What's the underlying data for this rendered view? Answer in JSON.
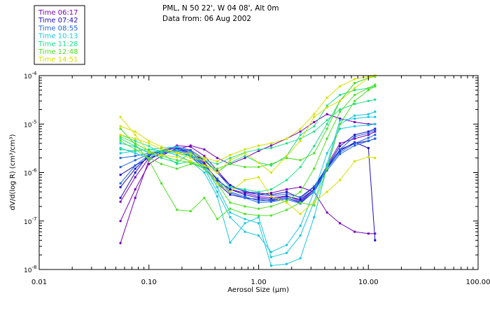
{
  "chart_data": {
    "type": "line",
    "title_line1": "PML, N 50 22', W 04 08', Alt 0m",
    "title_line2": "Data from: 06 Aug 2002",
    "xlabel": "Aerosol Size (μm)",
    "ylabel": "dV/d(log R) (cm³/cm³)",
    "xscale": "log",
    "yscale": "log",
    "xlim": [
      0.01,
      100.0
    ],
    "ylim": [
      1e-08,
      0.0001
    ],
    "x_tick_labels": [
      {
        "value": 0.01,
        "label": "0.01"
      },
      {
        "value": 0.1,
        "label": "0.10"
      },
      {
        "value": 1.0,
        "label": "1.00"
      },
      {
        "value": 10.0,
        "label": "10.00"
      },
      {
        "value": 100.0,
        "label": "100.00"
      }
    ],
    "y_tick_labels": [
      {
        "value": 1e-08,
        "mantissa": "10",
        "exp": "-8"
      },
      {
        "value": 1e-07,
        "mantissa": "10",
        "exp": "-7"
      },
      {
        "value": 1e-06,
        "mantissa": "10",
        "exp": "-6"
      },
      {
        "value": 1e-05,
        "mantissa": "10",
        "exp": "-5"
      },
      {
        "value": 0.0001,
        "mantissa": "10",
        "exp": "-4"
      }
    ],
    "legend_position": "top-left",
    "x": [
      0.055,
      0.075,
      0.1,
      0.13,
      0.18,
      0.24,
      0.32,
      0.42,
      0.55,
      0.75,
      1.0,
      1.3,
      1.8,
      2.4,
      3.2,
      4.2,
      5.5,
      7.5,
      10.0,
      11.5
    ],
    "series": [
      {
        "name": "Time 06:17",
        "color": "#7a00b8",
        "curves": [
          [
            1e-07,
            4.5e-07,
            1.5e-06,
            2.2e-06,
            3.2e-06,
            2.8e-06,
            1.6e-06,
            7e-07,
            4.5e-07,
            3.8e-07,
            3.2e-07,
            3e-07,
            3.3e-07,
            2.6e-07,
            4.5e-07,
            1.4e-06,
            4e-06,
            5e-06,
            6e-06,
            7e-06
          ],
          [
            3.5e-08,
            3e-07,
            1.8e-06,
            2.6e-06,
            3.6e-06,
            3.4e-06,
            2.2e-06,
            1.1e-06,
            5.5e-07,
            4e-07,
            3.5e-07,
            3.8e-07,
            4.5e-07,
            5e-07,
            4e-07,
            1.5e-07,
            9e-08,
            6e-08,
            5.5e-08,
            5.5e-08
          ],
          [
            2.5e-07,
            8e-07,
            2e-06,
            2.4e-06,
            3e-06,
            3.6e-06,
            3e-06,
            2e-06,
            1.5e-06,
            2e-06,
            2.8e-06,
            3.6e-06,
            5e-06,
            7e-06,
            1.1e-05,
            1.6e-05,
            1.3e-05,
            1.1e-05,
            1e-05,
            1e-05
          ]
        ]
      },
      {
        "name": "Time 07:42",
        "color": "#1c10c0",
        "curves": [
          [
            3e-07,
            1e-06,
            2.4e-06,
            2.6e-06,
            2.8e-06,
            2.2e-06,
            1.2e-06,
            6e-07,
            3.5e-07,
            3e-07,
            2.8e-07,
            2.6e-07,
            3e-07,
            2.4e-07,
            4e-07,
            1.2e-06,
            3e-06,
            4e-06,
            4.5e-06,
            5e-06
          ],
          [
            5e-07,
            1.2e-06,
            2.2e-06,
            2.8e-06,
            3.2e-06,
            2.6e-06,
            1.5e-06,
            7e-07,
            4.5e-07,
            3.5e-07,
            3e-07,
            2.8e-07,
            3.2e-07,
            2.8e-07,
            4.5e-07,
            1.3e-06,
            2.8e-06,
            4.2e-06,
            3.2e-06,
            4e-08
          ],
          [
            9e-07,
            1.4e-06,
            2e-06,
            2.4e-06,
            3e-06,
            2.6e-06,
            1.8e-06,
            1e-06,
            5.5e-07,
            4e-07,
            3.8e-07,
            3.5e-07,
            4e-07,
            3e-07,
            5e-07,
            1.3e-06,
            3.5e-06,
            6e-06,
            7e-06,
            8e-06
          ]
        ]
      },
      {
        "name": "Time 08:55",
        "color": "#1e64e0",
        "curves": [
          [
            6e-07,
            1.4e-06,
            2.3e-06,
            2.6e-06,
            3e-06,
            2.4e-06,
            1.3e-06,
            6.5e-07,
            3.8e-07,
            3e-07,
            2.4e-07,
            2.5e-07,
            2.8e-07,
            2.3e-07,
            4e-07,
            1.1e-06,
            2.4e-06,
            3.6e-06,
            4.5e-06,
            5e-06
          ],
          [
            1.3e-06,
            1.8e-06,
            2.4e-06,
            2.9e-06,
            3.4e-06,
            2.9e-06,
            1.9e-06,
            1e-06,
            5e-07,
            4.2e-07,
            3.5e-07,
            3.3e-07,
            3.6e-07,
            3.1e-07,
            5.2e-07,
            1.3e-06,
            3e-06,
            5.5e-06,
            6.5e-06,
            7.5e-06
          ],
          [
            2e-06,
            2.2e-06,
            2.5e-06,
            2.6e-06,
            2.8e-06,
            2.3e-06,
            1.4e-06,
            7.5e-07,
            4e-07,
            3.2e-07,
            2.6e-07,
            2.7e-07,
            3e-07,
            2.5e-07,
            4.2e-07,
            1.2e-06,
            2.6e-06,
            4e-06,
            5.2e-06,
            6e-06
          ]
        ]
      },
      {
        "name": "Time 10:13",
        "color": "#18c8dc",
        "curves": [
          [
            4e-06,
            3.4e-06,
            2.6e-06,
            2.8e-06,
            2.3e-06,
            1.7e-06,
            1e-06,
            3.2e-07,
            3.6e-08,
            9e-08,
            1.2e-07,
            1.8e-08,
            2.2e-08,
            5e-08,
            2.5e-07,
            1.5e-06,
            1.2e-05,
            1.3e-05,
            1.4e-05,
            1.4e-05
          ],
          [
            2.5e-06,
            2.8e-06,
            3e-06,
            3.2e-06,
            3.4e-06,
            2.6e-06,
            1.4e-06,
            5e-07,
            1.5e-07,
            1.1e-07,
            9e-08,
            1.2e-08,
            1.3e-08,
            1.7e-08,
            1.2e-07,
            1.3e-06,
            1e-05,
            1.5e-05,
            1.6e-05,
            1.8e-05
          ],
          [
            3.2e-06,
            2.5e-06,
            2e-06,
            2.7e-06,
            2.9e-06,
            2.1e-06,
            1.2e-06,
            4e-07,
            1.2e-07,
            6e-08,
            5e-08,
            2.3e-08,
            3.2e-08,
            8e-08,
            4e-07,
            2.5e-06,
            8e-06,
            9e-06,
            9.5e-06,
            1e-05
          ]
        ]
      },
      {
        "name": "Time 11:28",
        "color": "#1ee08c",
        "curves": [
          [
            5e-06,
            3.5e-06,
            2.5e-06,
            2e-06,
            1.6e-06,
            2.6e-06,
            1.9e-06,
            1e-06,
            1.6e-06,
            2.2e-06,
            1.6e-06,
            1.4e-06,
            2.2e-06,
            6e-06,
            9e-06,
            2.4e-05,
            4e-05,
            5e-05,
            5.5e-05,
            6e-05
          ],
          [
            6e-06,
            4.5e-06,
            3.5e-06,
            2.5e-06,
            1.5e-06,
            1.7e-06,
            1.2e-06,
            6e-07,
            5e-07,
            4.5e-07,
            4e-07,
            4.5e-07,
            7e-07,
            1.3e-06,
            3.5e-06,
            1e-05,
            3e-05,
            7e-05,
            9e-05,
            0.0001
          ],
          [
            3e-06,
            2.8e-06,
            3e-06,
            2.8e-06,
            2.5e-06,
            2.2e-06,
            1.8e-06,
            1.5e-06,
            2e-06,
            2.6e-06,
            3e-06,
            3.2e-06,
            4e-06,
            5e-06,
            7e-06,
            1.2e-05,
            2e-05,
            2.6e-05,
            3e-05,
            3.2e-05
          ]
        ]
      },
      {
        "name": "Time 12:48",
        "color": "#50e028",
        "curves": [
          [
            8e-06,
            3.8e-06,
            1.8e-06,
            6e-07,
            1.7e-07,
            1.6e-07,
            3e-07,
            1.1e-07,
            1.8e-07,
            1.4e-07,
            1.3e-07,
            1.3e-07,
            1.7e-07,
            2.4e-07,
            2.1e-07,
            1.2e-06,
            1e-05,
            3e-05,
            5e-05,
            6e-05
          ],
          [
            4.5e-06,
            3e-06,
            2e-06,
            1.5e-06,
            1.2e-06,
            1.5e-06,
            1.4e-06,
            1.2e-06,
            1.5e-06,
            1.3e-06,
            1.3e-06,
            1.5e-06,
            2e-06,
            1.8e-06,
            2.5e-06,
            8e-06,
            3e-05,
            7e-05,
            9e-05,
            9.5e-05
          ],
          [
            5.5e-06,
            4e-06,
            2.8e-06,
            2.2e-06,
            1.8e-06,
            1.6e-06,
            1.2e-06,
            6e-07,
            2.4e-07,
            2e-07,
            1.8e-07,
            2e-07,
            2.6e-07,
            4e-07,
            1.2e-06,
            5e-06,
            1.8e-05,
            4e-05,
            5.5e-05,
            6.5e-05
          ]
        ]
      },
      {
        "name": "Time 14:51",
        "color": "#d8e000",
        "curves": [
          [
            1.4e-05,
            6e-06,
            2.6e-06,
            2.3e-06,
            2.1e-06,
            1.7e-06,
            1.4e-06,
            1e-06,
            1.8e-06,
            2.5e-06,
            1.6e-06,
            1e-06,
            2.2e-06,
            4.5e-06,
            1.4e-05,
            2.2e-05,
            3e-05,
            5.5e-05,
            9e-05,
            0.0001
          ],
          [
            9e-06,
            7e-06,
            4.5e-06,
            3.4e-06,
            2.5e-06,
            2e-06,
            1.8e-06,
            6e-07,
            4e-07,
            7e-07,
            8e-07,
            3.2e-07,
            2.4e-07,
            1.4e-07,
            2.5e-07,
            4e-07,
            7e-07,
            1.7e-06,
            2.1e-06,
            2e-06
          ],
          [
            6e-06,
            5e-06,
            4e-06,
            3e-06,
            2.6e-06,
            2.4e-06,
            2e-06,
            1.7e-06,
            2.3e-06,
            3e-06,
            3.6e-06,
            4e-06,
            5e-06,
            8e-06,
            1.6e-05,
            3.5e-05,
            6e-05,
            8.5e-05,
            9.5e-05,
            0.0001
          ]
        ]
      }
    ]
  }
}
